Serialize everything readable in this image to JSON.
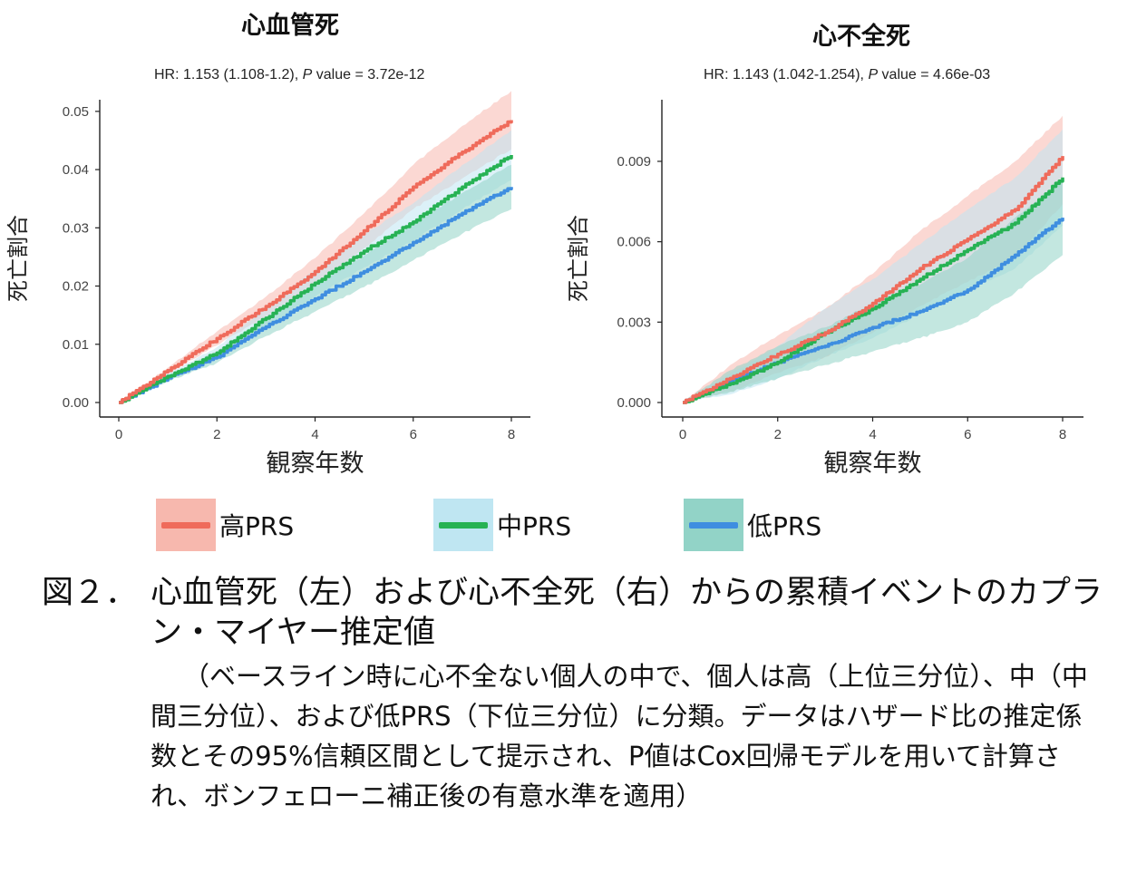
{
  "legend": [
    {
      "label": "高PRS",
      "line_color": "#ef6b5b",
      "band_color": "#f7b8ae"
    },
    {
      "label": "中PRS",
      "line_color": "#27b254",
      "band_color": "#bfe6f2"
    },
    {
      "label": "低PRS",
      "line_color": "#3f8ee0",
      "band_color": "#92d3c7"
    }
  ],
  "chart_data": [
    {
      "type": "line",
      "title": "心血管死",
      "subtitle_prefix": "HR: 1.153 (1.108-1.2), ",
      "subtitle_p": "P",
      "subtitle_suffix": " value = 3.72e-12",
      "xlabel": "観察年数",
      "ylabel": "死亡割合",
      "xlim": [
        0,
        8
      ],
      "ylim": [
        0,
        0.052
      ],
      "xticks": [
        "0",
        "2",
        "4",
        "6",
        "8"
      ],
      "yticks": [
        "0.00",
        "0.01",
        "0.02",
        "0.03",
        "0.04",
        "0.05"
      ],
      "x": [
        0,
        1,
        2,
        3,
        4,
        5,
        6,
        7,
        8
      ],
      "series": [
        {
          "name": "高PRS",
          "values": [
            0,
            0.0055,
            0.011,
            0.0165,
            0.0225,
            0.0295,
            0.037,
            0.043,
            0.0485
          ],
          "lower": [
            0,
            0.005,
            0.0098,
            0.0148,
            0.0202,
            0.0265,
            0.0332,
            0.0385,
            0.0435
          ],
          "upper": [
            0,
            0.006,
            0.0122,
            0.0182,
            0.0248,
            0.0325,
            0.0408,
            0.0475,
            0.0535
          ]
        },
        {
          "name": "中PRS",
          "values": [
            0,
            0.0045,
            0.0085,
            0.0145,
            0.0205,
            0.026,
            0.031,
            0.037,
            0.0425
          ],
          "lower": [
            0,
            0.004,
            0.0075,
            0.0128,
            0.0182,
            0.0232,
            0.0278,
            0.0332,
            0.0382
          ],
          "upper": [
            0,
            0.005,
            0.0095,
            0.0162,
            0.0228,
            0.0288,
            0.0342,
            0.0408,
            0.0468
          ]
        },
        {
          "name": "低PRS",
          "values": [
            0,
            0.0042,
            0.0078,
            0.013,
            0.0178,
            0.0225,
            0.0275,
            0.0325,
            0.037
          ],
          "lower": [
            0,
            0.0037,
            0.0068,
            0.0114,
            0.0156,
            0.0198,
            0.0244,
            0.029,
            0.0332
          ],
          "upper": [
            0,
            0.0047,
            0.0088,
            0.0146,
            0.02,
            0.0252,
            0.0306,
            0.036,
            0.0408
          ]
        }
      ]
    },
    {
      "type": "line",
      "title": "心不全死",
      "subtitle_prefix": "HR: 1.143 (1.042-1.254), ",
      "subtitle_p": "P",
      "subtitle_suffix": " value = 4.66e-03",
      "xlabel": "観察年数",
      "ylabel": "死亡割合",
      "xlim": [
        0,
        8
      ],
      "ylim": [
        0,
        0.0113
      ],
      "xticks": [
        "0",
        "2",
        "4",
        "6",
        "8"
      ],
      "yticks": [
        "0.000",
        "0.003",
        "0.006",
        "0.009"
      ],
      "x": [
        0,
        1,
        2,
        3,
        4,
        5,
        6,
        7,
        8
      ],
      "series": [
        {
          "name": "高PRS",
          "values": [
            0,
            0.0009,
            0.0018,
            0.0026,
            0.0037,
            0.005,
            0.0061,
            0.0072,
            0.0092
          ],
          "lower": [
            0,
            0.0004,
            0.0011,
            0.0017,
            0.0026,
            0.0036,
            0.0045,
            0.0054,
            0.0074
          ],
          "upper": [
            0,
            0.0014,
            0.0025,
            0.0035,
            0.0048,
            0.0064,
            0.0077,
            0.009,
            0.0107
          ]
        },
        {
          "name": "中PRS",
          "values": [
            0,
            0.0007,
            0.0015,
            0.0026,
            0.0035,
            0.0046,
            0.0057,
            0.0067,
            0.0084
          ],
          "lower": [
            0,
            0.0003,
            0.0009,
            0.0017,
            0.0024,
            0.0033,
            0.0042,
            0.005,
            0.0066
          ],
          "upper": [
            0,
            0.0011,
            0.0021,
            0.0035,
            0.0046,
            0.0059,
            0.0072,
            0.0084,
            0.0102
          ]
        },
        {
          "name": "低PRS",
          "values": [
            0,
            0.0008,
            0.0015,
            0.0021,
            0.0028,
            0.0034,
            0.0042,
            0.0055,
            0.0069
          ],
          "lower": [
            0,
            0.0004,
            0.0009,
            0.0014,
            0.0019,
            0.0024,
            0.003,
            0.0041,
            0.0055
          ],
          "upper": [
            0,
            0.0012,
            0.0021,
            0.0028,
            0.0037,
            0.0044,
            0.0054,
            0.0069,
            0.0083
          ]
        }
      ]
    }
  ],
  "caption": {
    "number": "図２．",
    "title": "心血管死（左）および心不全死（右）からの累積イベントのカプラン・マイヤー推定値",
    "body": "（ベースライン時に心不全ない個人の中で、個人は高（上位三分位）、中（中間三分位）、および低PRS（下位三分位）に分類。データはハザード比の推定係数とその95%信頼区間として提示され、P値はCox回帰モデルを用いて計算され、ボンフェローニ補正後の有意水準を適用）"
  }
}
